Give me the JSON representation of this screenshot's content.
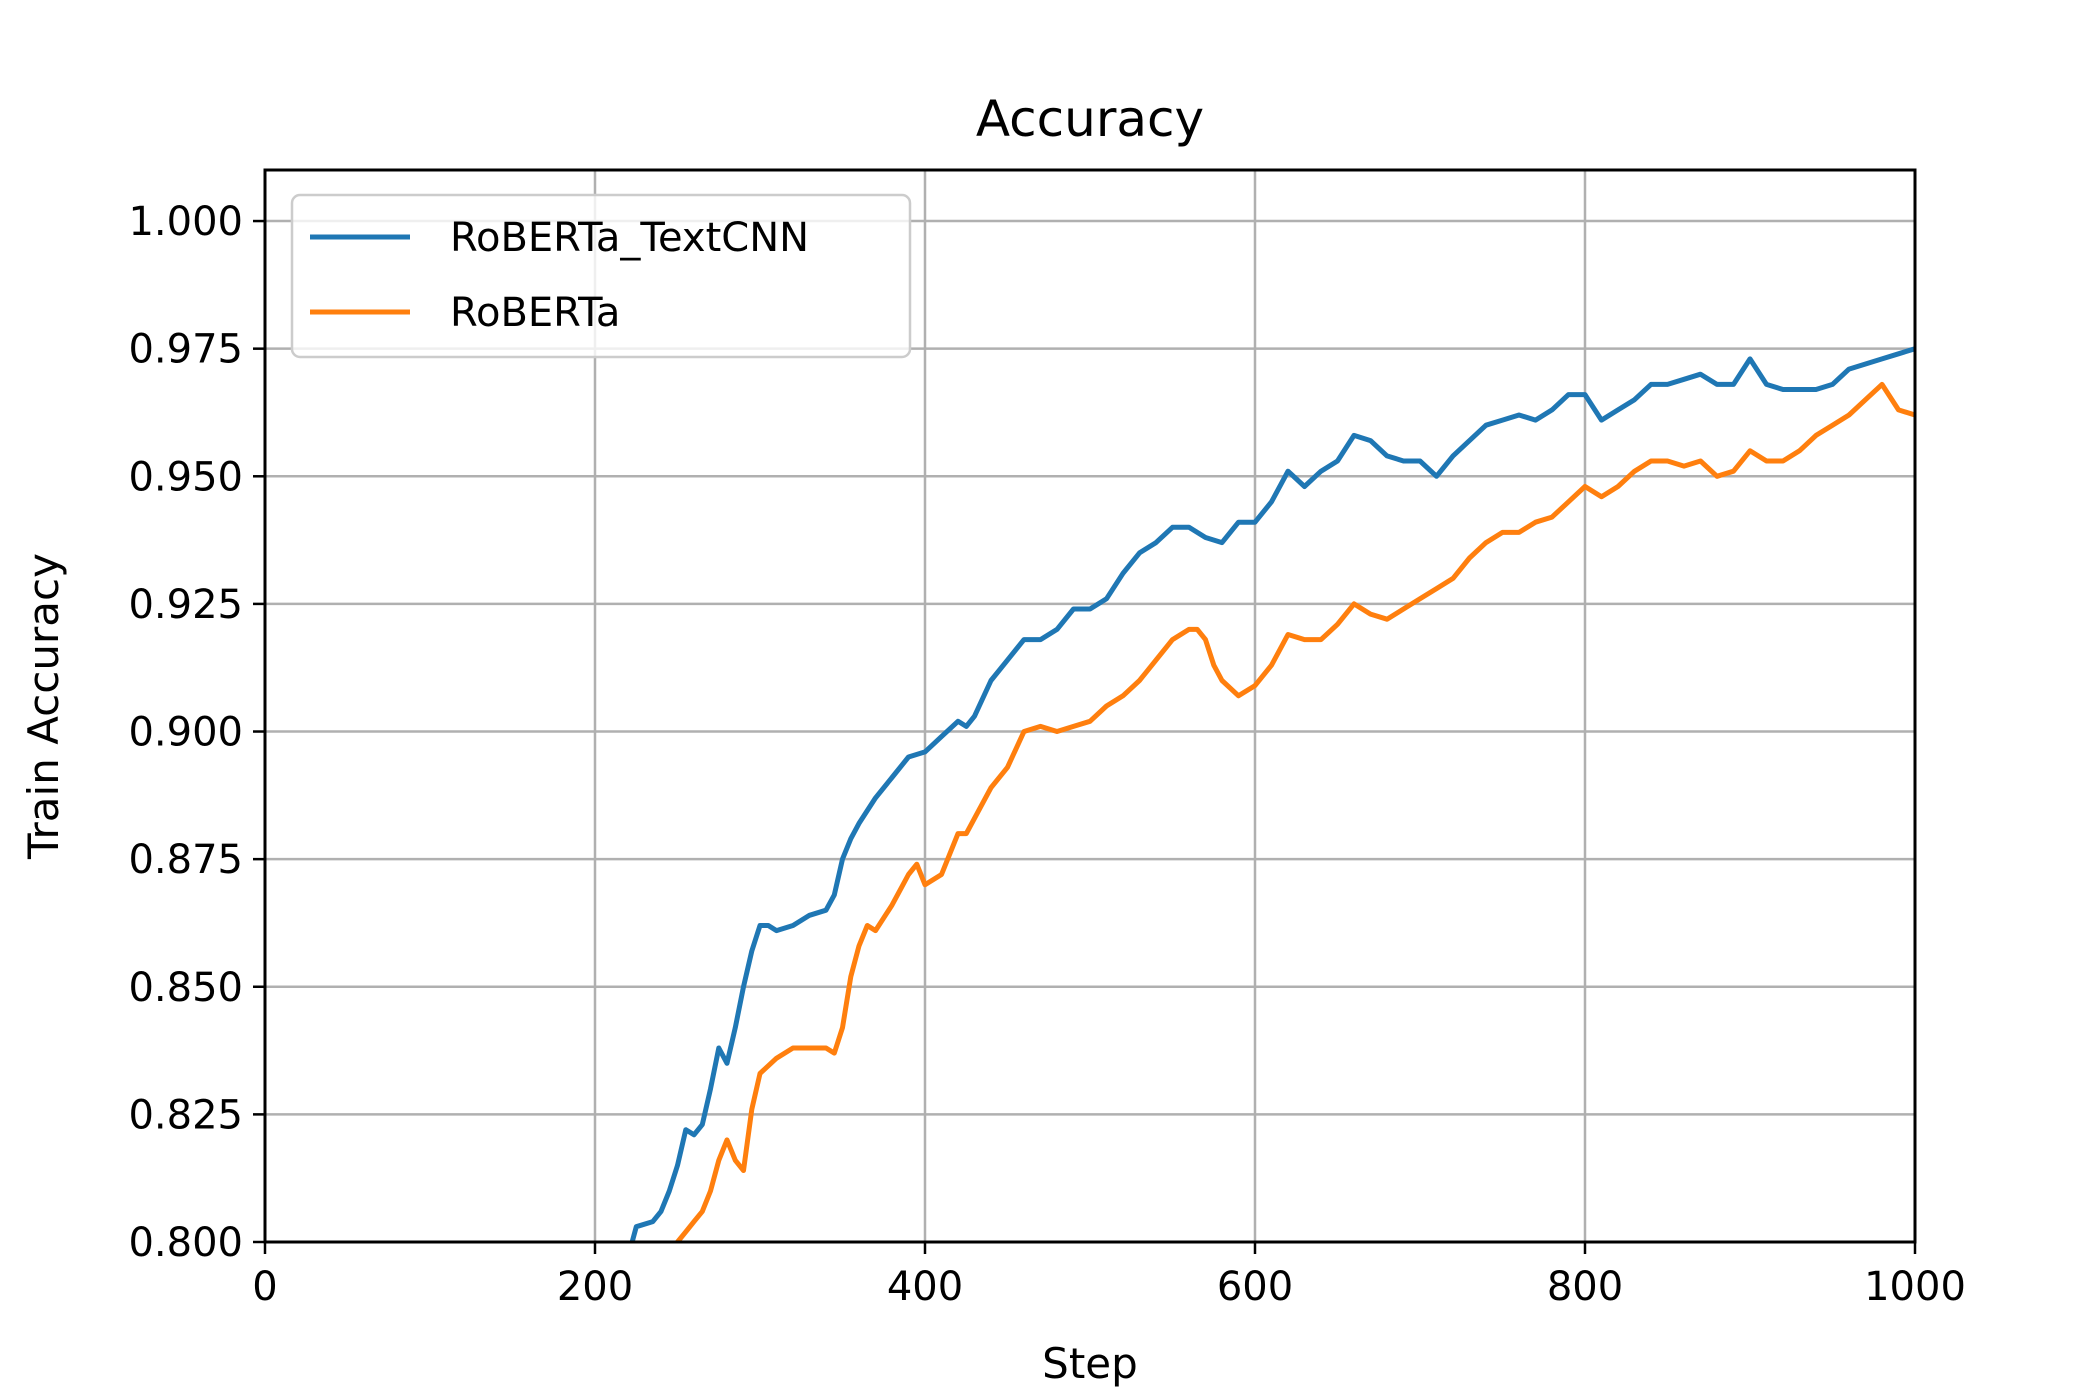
{
  "chart_data": {
    "type": "line",
    "title": "Accuracy",
    "xlabel": "Step",
    "ylabel": "Train Accuracy",
    "xlim": [
      0,
      1000
    ],
    "ylim": [
      0.8,
      1.01
    ],
    "xticks": [
      0,
      200,
      400,
      600,
      800,
      1000
    ],
    "xtick_labels": [
      "0",
      "200",
      "400",
      "600",
      "800",
      "1000"
    ],
    "yticks": [
      0.8,
      0.825,
      0.85,
      0.875,
      0.9,
      0.925,
      0.95,
      0.975,
      1.0
    ],
    "ytick_labels": [
      "0.800",
      "0.825",
      "0.850",
      "0.875",
      "0.900",
      "0.925",
      "0.950",
      "0.975",
      "1.000"
    ],
    "grid": true,
    "legend_position": "top-left",
    "series": [
      {
        "name": "RoBERTa_TextCNN",
        "color": "#1f77b4",
        "x": [
          200,
          220,
          225,
          235,
          240,
          245,
          250,
          255,
          260,
          265,
          270,
          275,
          280,
          285,
          290,
          295,
          300,
          305,
          310,
          320,
          330,
          340,
          345,
          350,
          355,
          360,
          370,
          380,
          390,
          400,
          410,
          420,
          425,
          430,
          440,
          450,
          460,
          470,
          480,
          490,
          500,
          510,
          520,
          530,
          540,
          550,
          560,
          570,
          580,
          590,
          600,
          610,
          620,
          630,
          640,
          650,
          660,
          670,
          680,
          690,
          700,
          710,
          720,
          730,
          740,
          750,
          760,
          770,
          780,
          790,
          800,
          810,
          820,
          830,
          840,
          850,
          860,
          870,
          880,
          890,
          900,
          910,
          920,
          930,
          940,
          950,
          960,
          970,
          980,
          990,
          1000
        ],
        "y": [
          0.78,
          0.797,
          0.803,
          0.804,
          0.806,
          0.81,
          0.815,
          0.822,
          0.821,
          0.823,
          0.83,
          0.838,
          0.835,
          0.842,
          0.85,
          0.857,
          0.862,
          0.862,
          0.861,
          0.862,
          0.864,
          0.865,
          0.868,
          0.875,
          0.879,
          0.882,
          0.887,
          0.891,
          0.895,
          0.896,
          0.899,
          0.902,
          0.901,
          0.903,
          0.91,
          0.914,
          0.918,
          0.918,
          0.92,
          0.924,
          0.924,
          0.926,
          0.931,
          0.935,
          0.937,
          0.94,
          0.94,
          0.938,
          0.937,
          0.941,
          0.941,
          0.945,
          0.951,
          0.948,
          0.951,
          0.953,
          0.958,
          0.957,
          0.954,
          0.953,
          0.953,
          0.95,
          0.954,
          0.957,
          0.96,
          0.961,
          0.962,
          0.961,
          0.963,
          0.966,
          0.966,
          0.961,
          0.963,
          0.965,
          0.968,
          0.968,
          0.969,
          0.97,
          0.968,
          0.968,
          0.973,
          0.968,
          0.967,
          0.967,
          0.967,
          0.968,
          0.971,
          0.972,
          0.973,
          0.974,
          0.975
        ]
      },
      {
        "name": "RoBERTa",
        "color": "#ff7f0e",
        "x": [
          240,
          250,
          255,
          260,
          265,
          270,
          275,
          280,
          285,
          290,
          295,
          300,
          310,
          320,
          330,
          340,
          345,
          350,
          355,
          360,
          365,
          370,
          380,
          390,
          395,
          400,
          410,
          420,
          425,
          430,
          440,
          450,
          460,
          470,
          480,
          490,
          500,
          510,
          520,
          530,
          540,
          550,
          560,
          565,
          570,
          575,
          580,
          590,
          600,
          610,
          620,
          630,
          640,
          650,
          660,
          670,
          680,
          690,
          700,
          710,
          720,
          730,
          740,
          750,
          760,
          770,
          780,
          790,
          800,
          810,
          820,
          830,
          840,
          850,
          860,
          870,
          880,
          890,
          900,
          910,
          920,
          930,
          940,
          950,
          960,
          970,
          980,
          990,
          1000
        ],
        "y": [
          0.785,
          0.8,
          0.802,
          0.804,
          0.806,
          0.81,
          0.816,
          0.82,
          0.816,
          0.814,
          0.826,
          0.833,
          0.836,
          0.838,
          0.838,
          0.838,
          0.837,
          0.842,
          0.852,
          0.858,
          0.862,
          0.861,
          0.866,
          0.872,
          0.874,
          0.87,
          0.872,
          0.88,
          0.88,
          0.883,
          0.889,
          0.893,
          0.9,
          0.901,
          0.9,
          0.901,
          0.902,
          0.905,
          0.907,
          0.91,
          0.914,
          0.918,
          0.92,
          0.92,
          0.918,
          0.913,
          0.91,
          0.907,
          0.909,
          0.913,
          0.919,
          0.918,
          0.918,
          0.921,
          0.925,
          0.923,
          0.922,
          0.924,
          0.926,
          0.928,
          0.93,
          0.934,
          0.937,
          0.939,
          0.939,
          0.941,
          0.942,
          0.945,
          0.948,
          0.946,
          0.948,
          0.951,
          0.953,
          0.953,
          0.952,
          0.953,
          0.95,
          0.951,
          0.955,
          0.953,
          0.953,
          0.955,
          0.958,
          0.96,
          0.962,
          0.965,
          0.968,
          0.963,
          0.962
        ]
      }
    ]
  }
}
